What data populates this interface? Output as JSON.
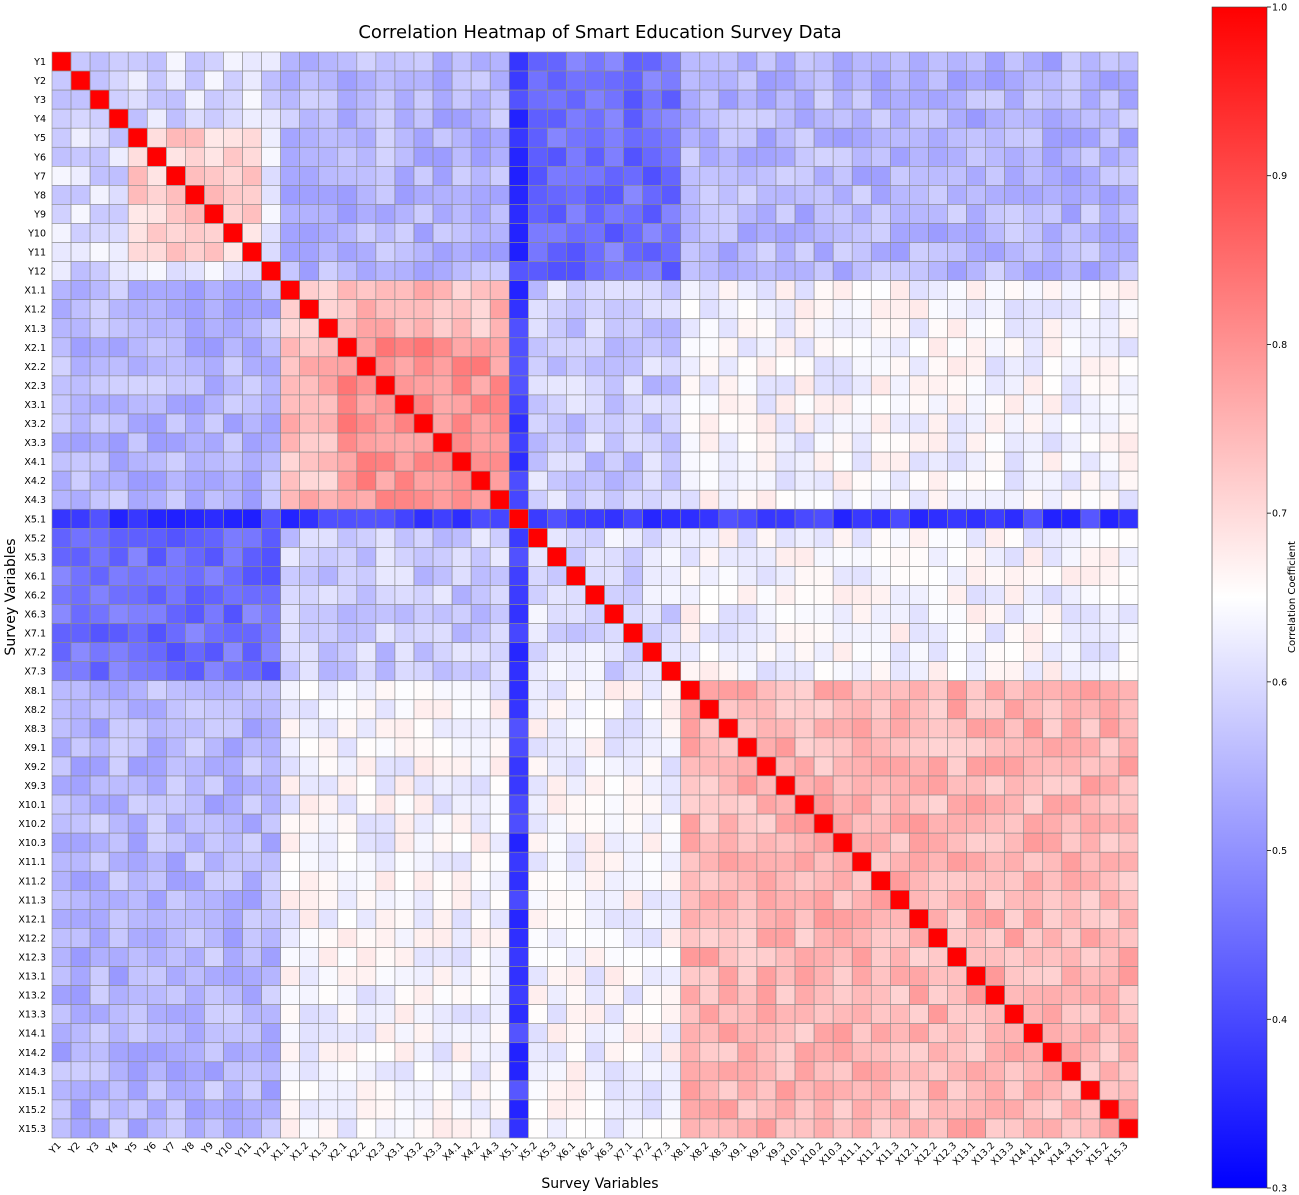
{
  "chart_data": {
    "type": "heatmap",
    "title": "Correlation Heatmap of Smart Education Survey Data",
    "xlabel": "Survey Variables",
    "ylabel": "Survey Variables",
    "colorbar_label": "Correlation Coefficient",
    "colorscale": {
      "low": "#0000ff",
      "mid": "#ffffff",
      "high": "#ff0000",
      "min": 0.3,
      "mid_value": 0.65,
      "max": 1.0
    },
    "colorbar_ticks": [
      "0.3",
      "0.4",
      "0.5",
      "0.6",
      "0.7",
      "0.8",
      "0.9",
      "1.0"
    ],
    "grid": true,
    "legend": "right",
    "variables": [
      "Y1",
      "Y2",
      "Y3",
      "Y4",
      "Y5",
      "Y6",
      "Y7",
      "Y8",
      "Y9",
      "Y10",
      "Y11",
      "Y12",
      "X1.1",
      "X1.2",
      "X1.3",
      "X2.1",
      "X2.2",
      "X2.3",
      "X3.1",
      "X3.2",
      "X3.3",
      "X4.1",
      "X4.2",
      "X4.3",
      "X5.1",
      "X5.2",
      "X5.3",
      "X6.1",
      "X6.2",
      "X6.3",
      "X7.1",
      "X7.2",
      "X7.3",
      "X8.1",
      "X8.2",
      "X8.3",
      "X9.1",
      "X9.2",
      "X9.3",
      "X10.1",
      "X10.2",
      "X10.3",
      "X11.1",
      "X11.2",
      "X11.3",
      "X12.1",
      "X12.2",
      "X12.3",
      "X13.1",
      "X13.2",
      "X13.3",
      "X14.1",
      "X14.2",
      "X14.3",
      "X15.1",
      "X15.2",
      "X15.3"
    ],
    "estimated_block_correlations": {
      "diagonal": 1.0,
      "Y5-Y11_block": 0.72,
      "Y_among_other": 0.6,
      "Y_vs_X": 0.55,
      "X1-X4_block": 0.74,
      "X2-X4_core": 0.8,
      "X5-X7_vs_Y": 0.45,
      "X5.1_row": 0.38,
      "X8-X15_block": 0.75,
      "X8-X15_vs_X1-X7": 0.64
    }
  }
}
